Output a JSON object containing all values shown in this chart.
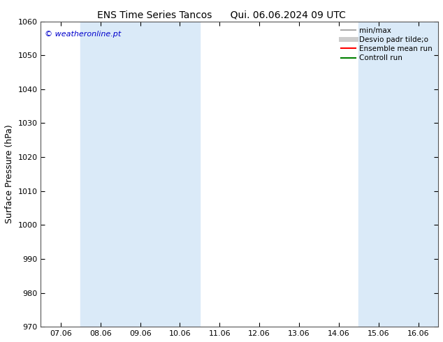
{
  "title_left": "ENS Time Series Tancos",
  "title_right": "Qui. 06.06.2024 09 UTC",
  "ylabel": "Surface Pressure (hPa)",
  "ylim": [
    970,
    1060
  ],
  "yticks": [
    970,
    980,
    990,
    1000,
    1010,
    1020,
    1030,
    1040,
    1050,
    1060
  ],
  "x_labels": [
    "07.06",
    "08.06",
    "09.06",
    "10.06",
    "11.06",
    "12.06",
    "13.06",
    "14.06",
    "15.06",
    "16.06"
  ],
  "x_positions": [
    0,
    1,
    2,
    3,
    4,
    5,
    6,
    7,
    8,
    9
  ],
  "xlim": [
    -0.5,
    9.5
  ],
  "shaded_regions": [
    {
      "xmin": 0.5,
      "xmax": 1.5,
      "color": "#daeaf8"
    },
    {
      "xmin": 1.5,
      "xmax": 2.5,
      "color": "#daeaf8"
    },
    {
      "xmin": 2.5,
      "xmax": 3.5,
      "color": "#daeaf8"
    },
    {
      "xmin": 7.5,
      "xmax": 8.5,
      "color": "#daeaf8"
    },
    {
      "xmin": 8.5,
      "xmax": 9.5,
      "color": "#daeaf8"
    }
  ],
  "watermark": "© weatheronline.pt",
  "watermark_color": "#0000cc",
  "background_color": "#ffffff",
  "legend_entries": [
    {
      "label": "min/max",
      "color": "#aaaaaa",
      "lw": 1.5,
      "style": "solid"
    },
    {
      "label": "Desvio padr tilde;o",
      "color": "#cccccc",
      "lw": 5,
      "style": "solid"
    },
    {
      "label": "Ensemble mean run",
      "color": "#ff0000",
      "lw": 1.5,
      "style": "solid"
    },
    {
      "label": "Controll run",
      "color": "#008000",
      "lw": 1.5,
      "style": "solid"
    }
  ],
  "tick_label_fontsize": 8,
  "axis_label_fontsize": 9,
  "title_fontsize": 10
}
